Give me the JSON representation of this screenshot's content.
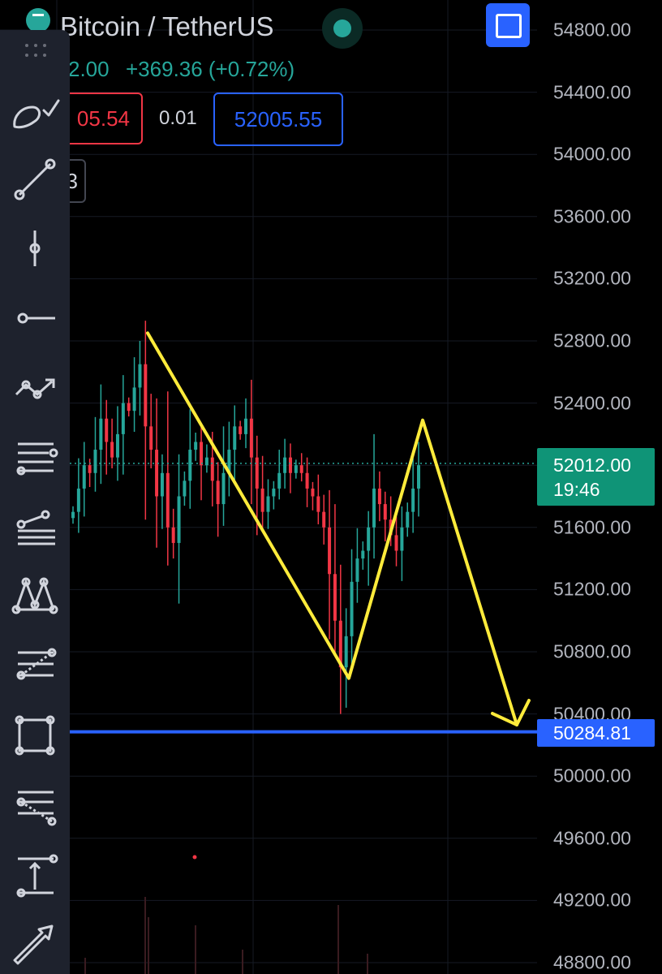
{
  "header": {
    "symbol": "Bitcoin / TetherUS",
    "price": "2.00",
    "change": "+369.36 (+0.72%)",
    "sell_price": "05.54",
    "spread": "0.01",
    "buy_price": "52005.55",
    "mini_label": "3"
  },
  "price_axis": {
    "ticks": [
      "54800.00",
      "54400.00",
      "54000.00",
      "53600.00",
      "53200.00",
      "52800.00",
      "52400.00",
      "51600.00",
      "51200.00",
      "50800.00",
      "50400.00",
      "50000.00",
      "49600.00",
      "49200.00",
      "48800.00"
    ],
    "last_price": "52012.00",
    "countdown": "19:46",
    "horizontal_line_price": "50284.81"
  },
  "chart_data": {
    "type": "candlestick",
    "instrument": "Bitcoin / TetherUS",
    "last_price": 52012.0,
    "horizontal_line": 50284.81,
    "price_range": [
      48800,
      54800
    ],
    "price_ticks": [
      54800,
      54400,
      54000,
      53600,
      53200,
      52800,
      52400,
      52000,
      51600,
      51200,
      50800,
      50400,
      50000,
      49600,
      49200,
      48800
    ],
    "drawn_zigzag_prices": [
      52850,
      50630,
      52290,
      50330
    ],
    "series": [
      {
        "name": "price",
        "values": [
          51700,
          51850,
          52000,
          51950,
          52100,
          52300,
          52150,
          52050,
          52200,
          52400,
          52350,
          52500,
          52650,
          52250,
          52100,
          51800,
          51950,
          51600,
          51500,
          51800,
          51900,
          52100,
          52150,
          52000,
          52050,
          51900,
          51750,
          51950,
          52100,
          52250,
          52200,
          52300,
          52050,
          51850,
          51700,
          51800,
          51850,
          51950,
          52050,
          51950,
          52000,
          51950,
          51850,
          51800,
          51700,
          51600,
          51300,
          51000,
          50700,
          50900,
          51250,
          51400,
          51450,
          51600,
          51850,
          51750,
          51650,
          51550,
          51450,
          51600,
          51700,
          51850,
          52000
        ]
      }
    ],
    "colors": {
      "up": "#26a69a",
      "down": "#f23645",
      "drawing": "#ffeb3b",
      "horizontal_line": "#2962ff"
    }
  },
  "toolbar": {
    "icons": [
      "brush-icon",
      "trend-line-icon",
      "vertical-line-icon",
      "horizontal-ray-icon",
      "path-icon",
      "parallel-channel-icon",
      "pitchfork-icon",
      "xabcd-pattern-icon",
      "fib-retracement-icon",
      "rectangle-icon",
      "fib-extension-icon",
      "price-range-icon",
      "arrow-icon"
    ]
  }
}
